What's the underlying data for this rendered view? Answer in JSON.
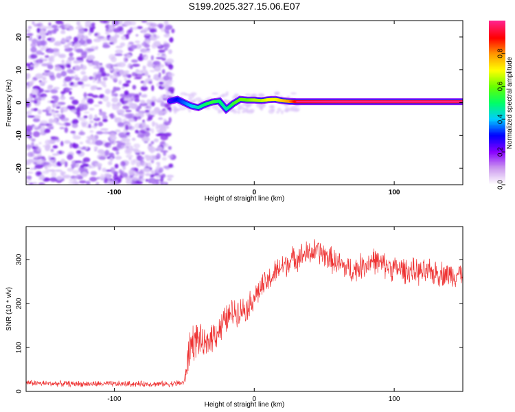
{
  "title": "S199.2025.327.15.06.E07",
  "chart_data": [
    {
      "type": "heatmap",
      "xlabel": "Height of straight line (km)",
      "ylabel": "Frequency (Hz)",
      "xlim": [
        -163,
        149
      ],
      "ylim": [
        -25,
        25
      ],
      "xticks": [
        -100,
        0,
        100
      ],
      "xtick_labels": [
        "-100",
        "0",
        "100"
      ],
      "yticks": [
        -20,
        -10,
        0,
        10,
        20
      ],
      "ytick_labels": [
        "-20",
        "-10",
        "0",
        "10",
        "20"
      ],
      "colorbar": {
        "label": "Normalized spectral amplitude",
        "range": [
          0,
          1
        ],
        "ticks": [
          0.0,
          0.2,
          0.4,
          0.6,
          0.8
        ],
        "tick_labels": [
          "0.0",
          "0.2",
          "0.4",
          "0.6",
          "0.8"
        ],
        "colors": [
          "#ffffff",
          "#cc99ee",
          "#8800ff",
          "#0000ff",
          "#00ccff",
          "#00ff66",
          "#66ff00",
          "#ffff00",
          "#ff9900",
          "#ff0000",
          "#ff2288"
        ]
      },
      "noise_region_x": [
        -163,
        -58
      ],
      "trace": {
        "x": [
          -60,
          -55,
          -50,
          -45,
          -40,
          -35,
          -30,
          -25,
          -20,
          -15,
          -10,
          -5,
          0,
          5,
          10,
          15,
          20,
          25,
          30,
          60,
          100,
          149
        ],
        "y": [
          0.5,
          1.0,
          0.0,
          -1.0,
          -1.5,
          -0.5,
          0.2,
          0.5,
          -2.0,
          -0.3,
          1.0,
          0.8,
          0.8,
          0.6,
          0.9,
          1.0,
          0.6,
          0.4,
          0.3,
          0.3,
          0.3,
          0.3
        ],
        "amplitude": [
          0.25,
          0.3,
          0.35,
          0.4,
          0.45,
          0.5,
          0.55,
          0.5,
          0.45,
          0.55,
          0.6,
          0.6,
          0.65,
          0.65,
          0.7,
          0.7,
          0.75,
          0.8,
          0.92,
          0.95,
          0.95,
          0.95
        ]
      }
    },
    {
      "type": "line",
      "xlabel": "Height of straight line (km)",
      "ylabel": "SNR (10 * v/v)",
      "xlim": [
        -163,
        149
      ],
      "ylim": [
        0,
        375
      ],
      "xticks": [
        -100,
        0,
        100
      ],
      "xtick_labels": [
        "-100",
        "0",
        "100"
      ],
      "yticks": [
        0,
        100,
        200,
        300
      ],
      "ytick_labels": [
        "0",
        "100",
        "200",
        "300"
      ],
      "color": "#ee3333",
      "series_envelope": {
        "x": [
          -163,
          -150,
          -120,
          -90,
          -60,
          -50,
          -47,
          -45,
          -40,
          -35,
          -30,
          -25,
          -20,
          -15,
          -10,
          -5,
          0,
          5,
          10,
          15,
          20,
          30,
          40,
          45,
          50,
          60,
          70,
          80,
          85,
          90,
          100,
          110,
          120,
          130,
          140,
          149
        ],
        "mean": [
          20,
          18,
          17,
          17,
          17,
          20,
          80,
          110,
          120,
          100,
          130,
          140,
          165,
          180,
          185,
          190,
          215,
          235,
          250,
          270,
          285,
          305,
          315,
          320,
          310,
          290,
          275,
          290,
          300,
          290,
          280,
          275,
          270,
          270,
          265,
          270
        ],
        "spread": [
          8,
          8,
          8,
          8,
          8,
          10,
          50,
          60,
          45,
          40,
          45,
          45,
          40,
          40,
          35,
          35,
          35,
          35,
          35,
          35,
          35,
          35,
          35,
          35,
          35,
          35,
          35,
          35,
          35,
          35,
          35,
          35,
          35,
          35,
          35,
          35
        ]
      }
    }
  ]
}
